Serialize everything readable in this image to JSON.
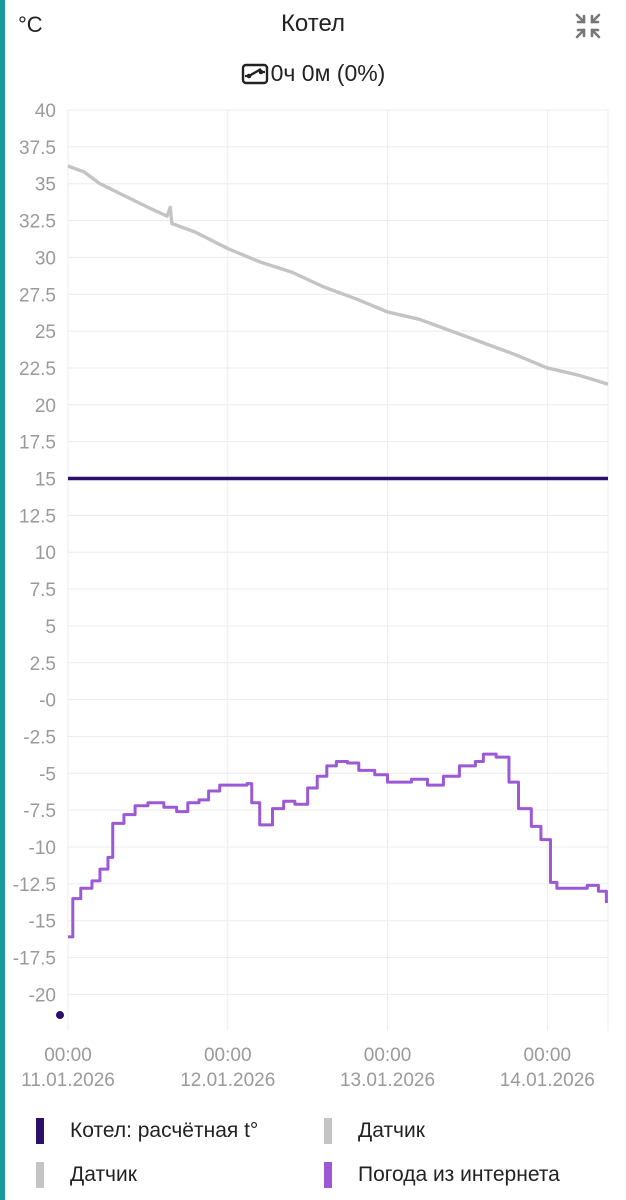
{
  "header": {
    "unit": "°C",
    "title": "Котел",
    "collapse_icon": "collapse-arrows-icon",
    "runtime_icon": "burner-switch-icon",
    "runtime": "0ч 0м (0%)"
  },
  "chart_data": {
    "type": "line",
    "ylim": [
      -22.5,
      40
    ],
    "yticks": [
      40,
      37.5,
      35,
      32.5,
      30,
      27.5,
      25,
      22.5,
      20,
      17.5,
      15,
      12.5,
      10,
      7.5,
      5,
      2.5,
      "-0",
      -2.5,
      -5,
      -7.5,
      -10,
      -12.5,
      -15,
      -17.5,
      -20
    ],
    "xlim": [
      0,
      3.38
    ],
    "xticks": [
      {
        "x": 0,
        "time": "00:00",
        "date": "11.01.2026"
      },
      {
        "x": 1,
        "time": "00:00",
        "date": "12.01.2026"
      },
      {
        "x": 2,
        "time": "00:00",
        "date": "13.01.2026"
      },
      {
        "x": 3,
        "time": "00:00",
        "date": "14.01.2026"
      }
    ],
    "grid": true,
    "legend_position": "bottom",
    "series": [
      {
        "name": "Котел: расчётная t°",
        "color": "#2a0f6b",
        "style": "line",
        "points": [
          [
            0,
            15
          ],
          [
            3.38,
            15
          ]
        ]
      },
      {
        "name": "Датчик",
        "color": "#c4c4c4",
        "style": "line",
        "points": [
          [
            0,
            36.2
          ],
          [
            0.1,
            35.8
          ],
          [
            0.2,
            35.0
          ],
          [
            0.35,
            34.2
          ],
          [
            0.5,
            33.4
          ],
          [
            0.62,
            32.8
          ],
          [
            0.64,
            33.4
          ],
          [
            0.65,
            32.3
          ],
          [
            0.8,
            31.7
          ],
          [
            1.0,
            30.6
          ],
          [
            1.2,
            29.7
          ],
          [
            1.4,
            29.0
          ],
          [
            1.6,
            28.0
          ],
          [
            1.8,
            27.2
          ],
          [
            2.0,
            26.3
          ],
          [
            2.2,
            25.8
          ],
          [
            2.4,
            25.0
          ],
          [
            2.6,
            24.2
          ],
          [
            2.8,
            23.4
          ],
          [
            3.0,
            22.5
          ],
          [
            3.2,
            22.0
          ],
          [
            3.38,
            21.4
          ]
        ]
      },
      {
        "name": "Датчик",
        "color": "#c4c4c4",
        "style": "points",
        "points": [
          [
            -0.05,
            -21.4
          ]
        ]
      },
      {
        "name": "Погода из интернета",
        "color": "#9b59d6",
        "style": "step",
        "points": [
          [
            0,
            -16.1
          ],
          [
            0.03,
            -13.5
          ],
          [
            0.08,
            -12.8
          ],
          [
            0.15,
            -12.3
          ],
          [
            0.2,
            -11.5
          ],
          [
            0.25,
            -10.7
          ],
          [
            0.28,
            -8.4
          ],
          [
            0.35,
            -7.8
          ],
          [
            0.42,
            -7.2
          ],
          [
            0.5,
            -7.0
          ],
          [
            0.6,
            -7.3
          ],
          [
            0.68,
            -7.6
          ],
          [
            0.75,
            -7.0
          ],
          [
            0.82,
            -6.8
          ],
          [
            0.88,
            -6.2
          ],
          [
            0.95,
            -5.8
          ],
          [
            1.0,
            -5.8
          ],
          [
            1.08,
            -5.8
          ],
          [
            1.12,
            -5.7
          ],
          [
            1.15,
            -7.0
          ],
          [
            1.2,
            -8.5
          ],
          [
            1.28,
            -7.4
          ],
          [
            1.35,
            -6.9
          ],
          [
            1.42,
            -7.1
          ],
          [
            1.5,
            -6.0
          ],
          [
            1.56,
            -5.2
          ],
          [
            1.62,
            -4.5
          ],
          [
            1.68,
            -4.2
          ],
          [
            1.75,
            -4.3
          ],
          [
            1.82,
            -4.8
          ],
          [
            1.92,
            -5.1
          ],
          [
            2.0,
            -5.6
          ],
          [
            2.08,
            -5.6
          ],
          [
            2.15,
            -5.4
          ],
          [
            2.25,
            -5.8
          ],
          [
            2.35,
            -5.2
          ],
          [
            2.45,
            -4.5
          ],
          [
            2.55,
            -4.2
          ],
          [
            2.6,
            -3.7
          ],
          [
            2.68,
            -3.9
          ],
          [
            2.76,
            -5.6
          ],
          [
            2.82,
            -7.4
          ],
          [
            2.9,
            -8.6
          ],
          [
            2.96,
            -9.5
          ],
          [
            3.02,
            -12.4
          ],
          [
            3.06,
            -12.8
          ],
          [
            3.15,
            -12.8
          ],
          [
            3.25,
            -12.6
          ],
          [
            3.32,
            -13.0
          ],
          [
            3.37,
            -13.8
          ]
        ]
      }
    ]
  },
  "legend": [
    {
      "label": "Котел: расчётная t°",
      "color": "#2a0f6b"
    },
    {
      "label": "Датчик",
      "color": "#c4c4c4"
    },
    {
      "label": "Датчик",
      "color": "#c4c4c4"
    },
    {
      "label": "Погода из интернета",
      "color": "#9b59d6"
    }
  ]
}
